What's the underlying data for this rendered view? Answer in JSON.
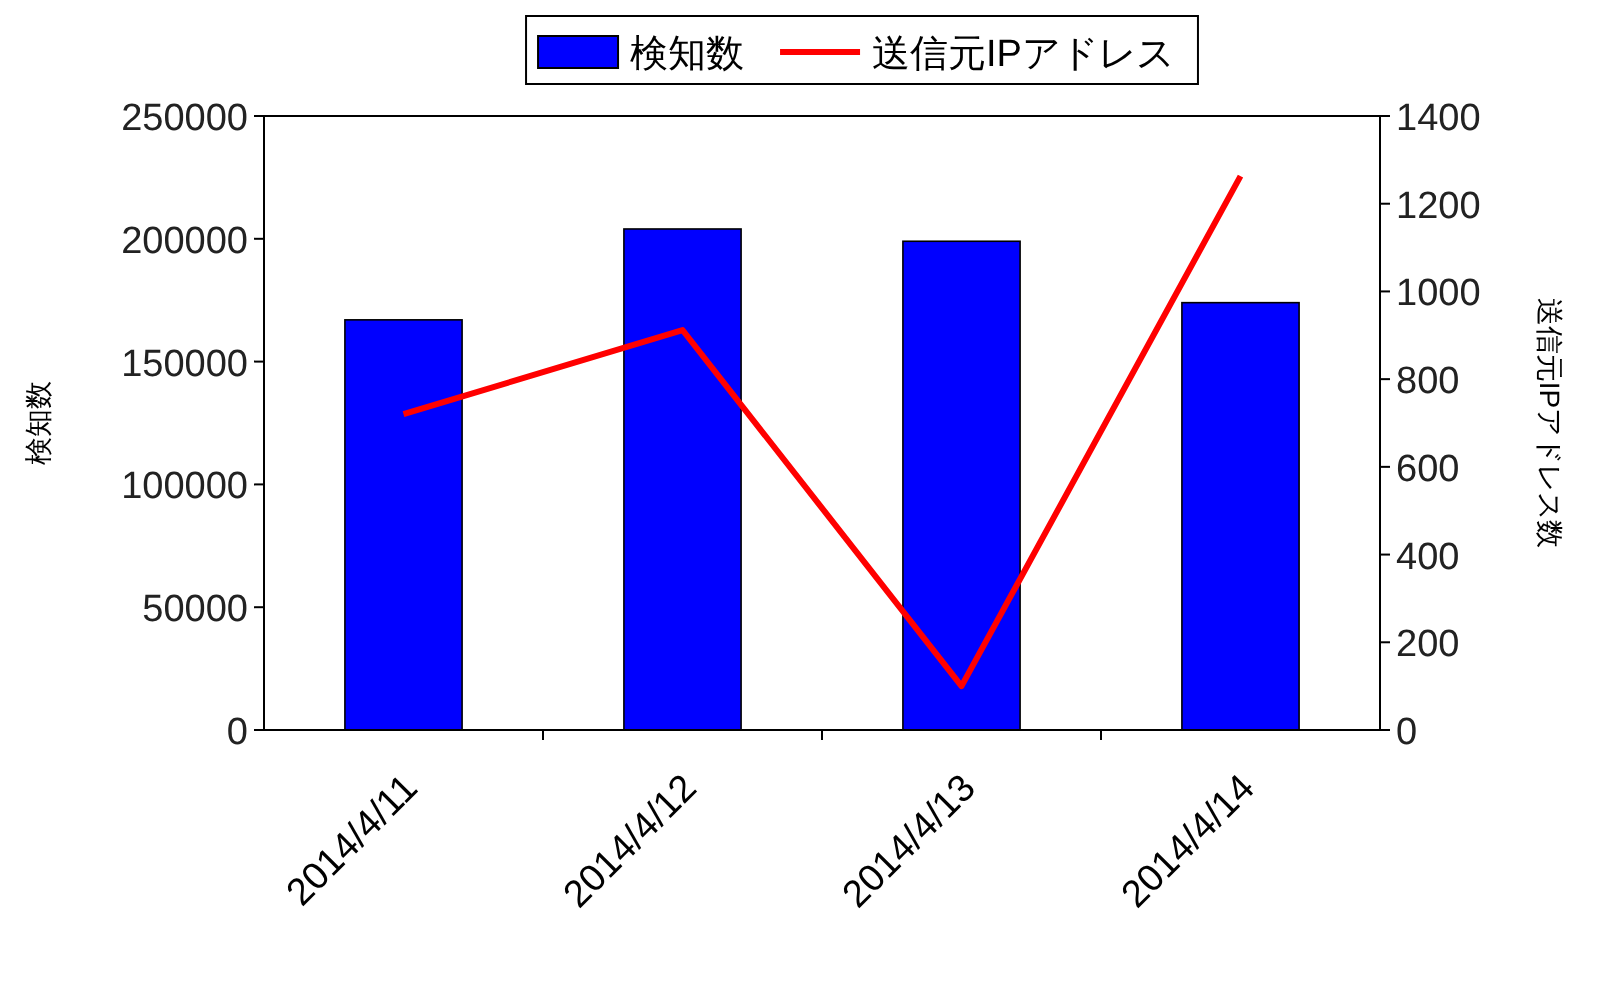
{
  "chart_data": {
    "type": "bar",
    "ylabel": "検知数",
    "y2label": "送信元IPアドレス数",
    "categories": [
      "2014/4/11",
      "2014/4/12",
      "2014/4/13",
      "2014/4/14"
    ],
    "series": [
      {
        "name": "検知数",
        "color": "#0000ff",
        "values": [
          167000,
          204000,
          199000,
          174000
        ]
      },
      {
        "name": "送信元IPアドレス",
        "type": "line",
        "axis": "y2",
        "color": "#ff0000",
        "values": [
          720,
          912,
          100,
          1263
        ]
      }
    ],
    "ylim": [
      0,
      250000
    ],
    "yticks": [
      0,
      50000,
      100000,
      150000,
      200000,
      250000
    ],
    "y2lim": [
      0,
      1400
    ],
    "y2ticks": [
      0,
      200,
      400,
      600,
      800,
      1000,
      1200,
      1400
    ],
    "legend": "top",
    "grid": false,
    "marker": "none",
    "line_style": "solid"
  }
}
